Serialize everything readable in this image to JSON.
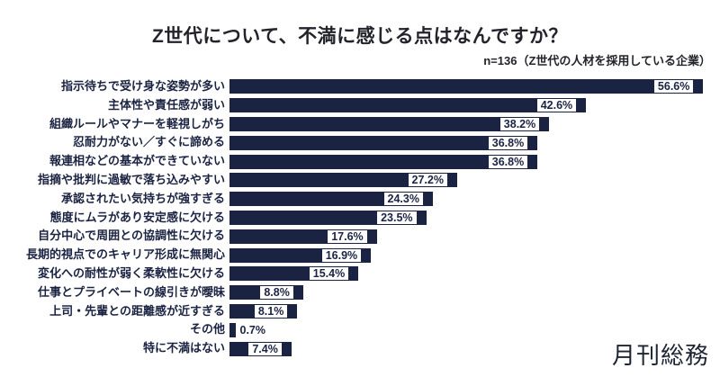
{
  "title": "Z世代について、不満に感じる点はなんですか？",
  "subtitle": "n=136（Z世代の人材を採用している企業）",
  "logo": "月刊総務",
  "colors": {
    "bar": "#1b2342",
    "title_text": "#23242b",
    "background": "#ffffff"
  },
  "chart_data": {
    "type": "bar",
    "orientation": "horizontal",
    "title": "Z世代について、不満に感じる点はなんですか？",
    "subtitle": "n=136（Z世代の人材を採用している企業）",
    "unit": "%",
    "xlim": [
      0,
      60
    ],
    "grid": false,
    "legend": false,
    "categories": [
      "指示待ちで受け身な姿勢が多い",
      "主体性や責任感が弱い",
      "組織ルールやマナーを軽視しがち",
      "忍耐力がない／すぐに諦める",
      "報連相などの基本ができていない",
      "指摘や批判に過敏で落ち込みやすい",
      "承認されたい気持ちが強すぎる",
      "態度にムラがあり安定感に欠ける",
      "自分中心で周囲との協調性に欠ける",
      "長期的視点でのキャリア形成に無関心",
      "変化への耐性が弱く柔軟性に欠ける",
      "仕事とプライベートの線引きが曖昧",
      "上司・先輩との距離感が近すぎる",
      "その他",
      "特に不満はない"
    ],
    "values": [
      56.6,
      42.6,
      38.2,
      36.8,
      36.8,
      27.2,
      24.3,
      23.5,
      17.6,
      16.9,
      15.4,
      8.8,
      8.1,
      0.7,
      7.4
    ],
    "value_labels": [
      "56.6%",
      "42.6%",
      "38.2%",
      "36.8%",
      "36.8%",
      "27.2%",
      "24.3%",
      "23.5%",
      "17.6%",
      "16.9%",
      "15.4%",
      "8.8%",
      "8.1%",
      "0.7%",
      "7.4%"
    ]
  }
}
